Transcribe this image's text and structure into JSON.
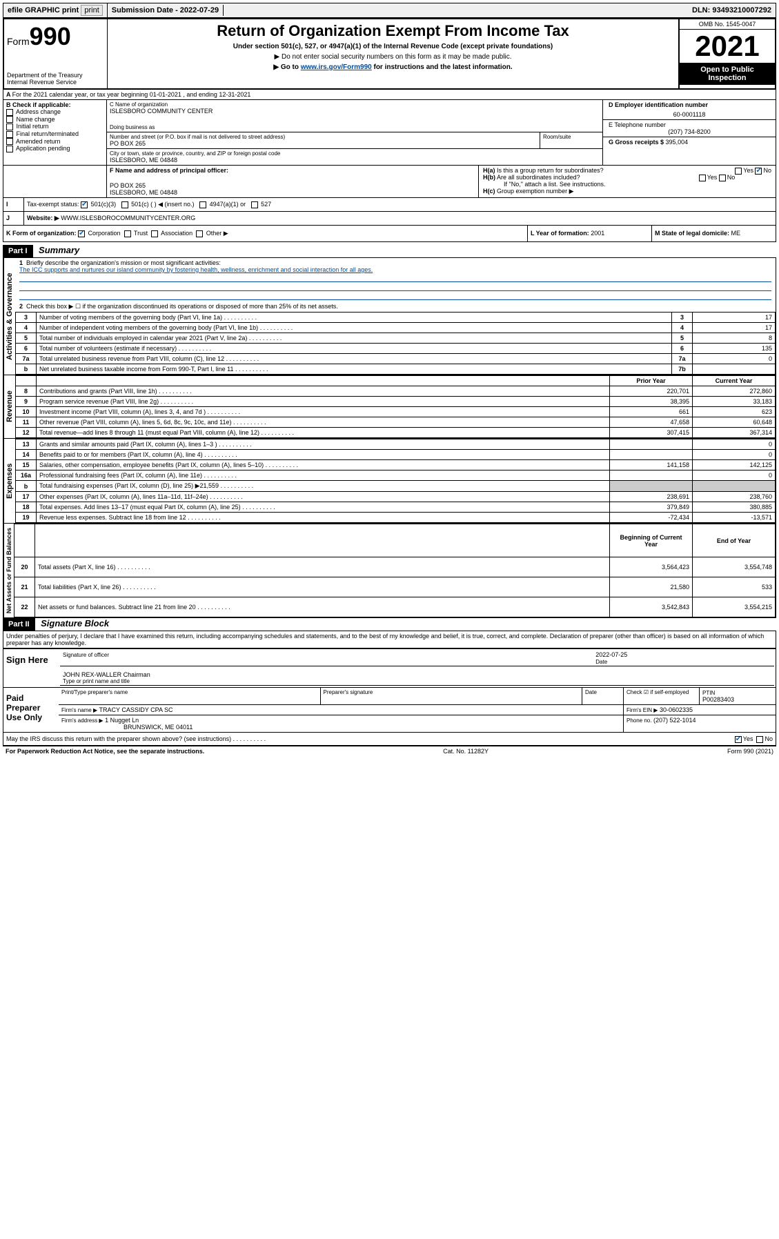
{
  "topbar": {
    "efile": "efile GRAPHIC print",
    "subdate_label": "Submission Date - ",
    "subdate": "2022-07-29",
    "dln_label": "DLN: ",
    "dln": "93493210007292"
  },
  "header": {
    "form_label": "Form",
    "form_no": "990",
    "title": "Return of Organization Exempt From Income Tax",
    "subtitle": "Under section 501(c), 527, or 4947(a)(1) of the Internal Revenue Code (except private foundations)",
    "note1": "▶ Do not enter social security numbers on this form as it may be made public.",
    "note2_pre": "▶ Go to ",
    "note2_link": "www.irs.gov/Form990",
    "note2_post": " for instructions and the latest information.",
    "dept": "Department of the Treasury\nInternal Revenue Service",
    "omb": "OMB No. 1545-0047",
    "year": "2021",
    "inspection": "Open to Public Inspection"
  },
  "A": {
    "text": "For the 2021 calendar year, or tax year beginning 01-01-2021   , and ending 12-31-2021"
  },
  "B": {
    "label": "B Check if applicable:",
    "opts": [
      "Address change",
      "Name change",
      "Initial return",
      "Final return/terminated",
      "Amended return",
      "Application pending"
    ]
  },
  "C": {
    "name_label": "C Name of organization",
    "name": "ISLESBORO COMMUNITY CENTER",
    "dba_label": "Doing business as",
    "street_label": "Number and street (or P.O. box if mail is not delivered to street address)",
    "street": "PO BOX 265",
    "room_label": "Room/suite",
    "city_label": "City or town, state or province, country, and ZIP or foreign postal code",
    "city": "ISLESBORO, ME  04848"
  },
  "D": {
    "label": "D Employer identification number",
    "ein": "60-0001118"
  },
  "E": {
    "label": "E Telephone number",
    "phone": "(207) 734-8200"
  },
  "G": {
    "label": "G Gross receipts $ ",
    "amount": "395,004"
  },
  "F": {
    "label": "F Name and address of principal officer:",
    "addr1": "PO BOX 265",
    "addr2": "ISLESBORO, ME  04848"
  },
  "H": {
    "a": "Is this a group return for subordinates?",
    "b": "Are all subordinates included?",
    "b_note": "If \"No,\" attach a list. See instructions.",
    "c": "Group exemption number ▶",
    "yes": "Yes",
    "no": "No"
  },
  "I": {
    "label": "Tax-exempt status:",
    "o1": "501(c)(3)",
    "o2": "501(c) (  ) ◀ (insert no.)",
    "o3": "4947(a)(1) or",
    "o4": "527"
  },
  "J": {
    "label": "Website: ▶",
    "url": "WWW.ISLESBOROCOMMUNITYCENTER.ORG"
  },
  "K": {
    "label": "K Form of organization:",
    "o1": "Corporation",
    "o2": "Trust",
    "o3": "Association",
    "o4": "Other ▶"
  },
  "L": {
    "label": "L Year of formation: ",
    "val": "2001"
  },
  "M": {
    "label": "M State of legal domicile: ",
    "val": "ME"
  },
  "partI": {
    "hdr": "Part I",
    "title": "Summary"
  },
  "summary": {
    "q1": "Briefly describe the organization's mission or most significant activities:",
    "mission": "The ICC supports and nurtures our island community by fostering health, wellness, enrichment and social interaction for all ages.",
    "q2": "Check this box ▶ ☐  if the organization discontinued its operations or disposed of more than 25% of its net assets.",
    "rows_gov": [
      {
        "n": "3",
        "t": "Number of voting members of the governing body (Part VI, line 1a)",
        "r": "3",
        "v": "17"
      },
      {
        "n": "4",
        "t": "Number of independent voting members of the governing body (Part VI, line 1b)",
        "r": "4",
        "v": "17"
      },
      {
        "n": "5",
        "t": "Total number of individuals employed in calendar year 2021 (Part V, line 2a)",
        "r": "5",
        "v": "8"
      },
      {
        "n": "6",
        "t": "Total number of volunteers (estimate if necessary)",
        "r": "6",
        "v": "135"
      },
      {
        "n": "7a",
        "t": "Total unrelated business revenue from Part VIII, column (C), line 12",
        "r": "7a",
        "v": "0"
      },
      {
        "n": "b",
        "t": "Net unrelated business taxable income from Form 990-T, Part I, line 11",
        "r": "7b",
        "v": ""
      }
    ],
    "py": "Prior Year",
    "cy": "Current Year",
    "rows_rev": [
      {
        "n": "8",
        "t": "Contributions and grants (Part VIII, line 1h)",
        "p": "220,701",
        "c": "272,860"
      },
      {
        "n": "9",
        "t": "Program service revenue (Part VIII, line 2g)",
        "p": "38,395",
        "c": "33,183"
      },
      {
        "n": "10",
        "t": "Investment income (Part VIII, column (A), lines 3, 4, and 7d )",
        "p": "661",
        "c": "623"
      },
      {
        "n": "11",
        "t": "Other revenue (Part VIII, column (A), lines 5, 6d, 8c, 9c, 10c, and 11e)",
        "p": "47,658",
        "c": "60,648"
      },
      {
        "n": "12",
        "t": "Total revenue—add lines 8 through 11 (must equal Part VIII, column (A), line 12)",
        "p": "307,415",
        "c": "367,314"
      }
    ],
    "rows_exp": [
      {
        "n": "13",
        "t": "Grants and similar amounts paid (Part IX, column (A), lines 1–3 )",
        "p": "",
        "c": "0"
      },
      {
        "n": "14",
        "t": "Benefits paid to or for members (Part IX, column (A), line 4)",
        "p": "",
        "c": "0"
      },
      {
        "n": "15",
        "t": "Salaries, other compensation, employee benefits (Part IX, column (A), lines 5–10)",
        "p": "141,158",
        "c": "142,125"
      },
      {
        "n": "16a",
        "t": "Professional fundraising fees (Part IX, column (A), line 11e)",
        "p": "",
        "c": "0"
      },
      {
        "n": "b",
        "t": "Total fundraising expenses (Part IX, column (D), line 25) ▶21,559",
        "p": "grey",
        "c": "grey"
      },
      {
        "n": "17",
        "t": "Other expenses (Part IX, column (A), lines 11a–11d, 11f–24e)",
        "p": "238,691",
        "c": "238,760"
      },
      {
        "n": "18",
        "t": "Total expenses. Add lines 13–17 (must equal Part IX, column (A), line 25)",
        "p": "379,849",
        "c": "380,885"
      },
      {
        "n": "19",
        "t": "Revenue less expenses. Subtract line 18 from line 12",
        "p": "-72,434",
        "c": "-13,571"
      }
    ],
    "bcy": "Beginning of Current Year",
    "eoy": "End of Year",
    "rows_net": [
      {
        "n": "20",
        "t": "Total assets (Part X, line 16)",
        "p": "3,564,423",
        "c": "3,554,748"
      },
      {
        "n": "21",
        "t": "Total liabilities (Part X, line 26)",
        "p": "21,580",
        "c": "533"
      },
      {
        "n": "22",
        "t": "Net assets or fund balances. Subtract line 21 from line 20",
        "p": "3,542,843",
        "c": "3,554,215"
      }
    ],
    "vlabels": [
      "Activities & Governance",
      "Revenue",
      "Expenses",
      "Net Assets or Fund Balances"
    ]
  },
  "partII": {
    "hdr": "Part II",
    "title": "Signature Block"
  },
  "sig": {
    "penalty": "Under penalties of perjury, I declare that I have examined this return, including accompanying schedules and statements, and to the best of my knowledge and belief, it is true, correct, and complete. Declaration of preparer (other than officer) is based on all information of which preparer has any knowledge.",
    "sign_here": "Sign Here",
    "sig_officer": "Signature of officer",
    "sig_date": "2022-07-25",
    "date_label": "Date",
    "officer": "JOHN REX-WALLER  Chairman",
    "officer_label": "Type or print name and title",
    "paid": "Paid Preparer Use Only",
    "prep_name_label": "Print/Type preparer's name",
    "prep_sig_label": "Preparer's signature",
    "check_label": "Check ☑ if self-employed",
    "ptin_label": "PTIN",
    "ptin": "P00283403",
    "firm_name_label": "Firm's name   ▶",
    "firm_name": "TRACY CASSIDY CPA SC",
    "firm_ein_label": "Firm's EIN ▶",
    "firm_ein": "30-0602335",
    "firm_addr_label": "Firm's address ▶",
    "firm_addr": "1 Nugget Ln",
    "firm_city": "BRUNSWICK, ME  04011",
    "phone_label": "Phone no.",
    "phone": "(207) 522-1014",
    "discuss": "May the IRS discuss this return with the preparer shown above? (see instructions)",
    "yes": "Yes",
    "no": "No"
  },
  "footer": {
    "left": "For Paperwork Reduction Act Notice, see the separate instructions.",
    "mid": "Cat. No. 11282Y",
    "right": "Form 990 (2021)"
  }
}
